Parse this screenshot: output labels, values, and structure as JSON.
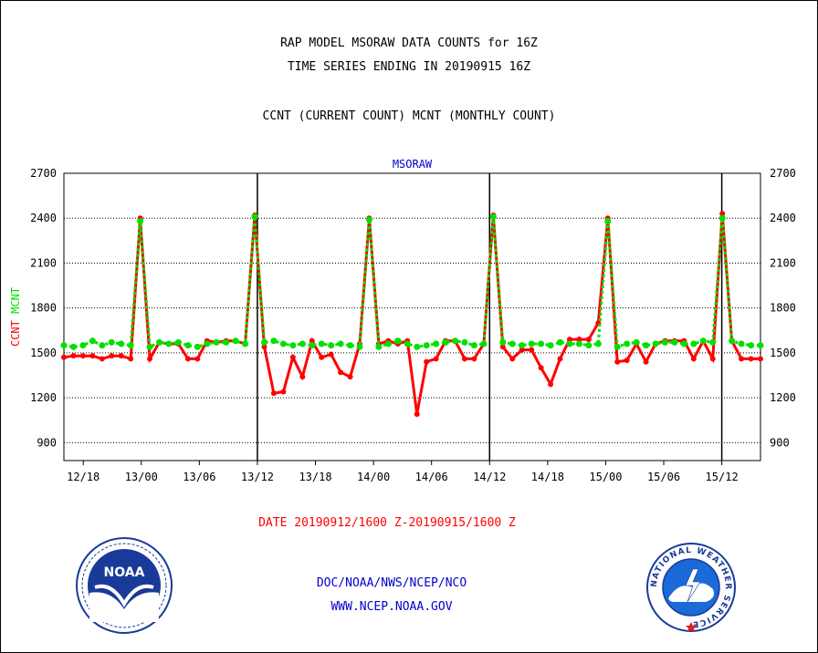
{
  "header": {
    "title_line1": "RAP MODEL MSORAW DATA COUNTS for 16Z",
    "title_line2": "TIME SERIES ENDING IN 20190915 16Z",
    "subtitle": "CCNT (CURRENT COUNT) MCNT (MONTHLY COUNT)"
  },
  "footer": {
    "date_range": "DATE 20190912/1600 Z-20190915/1600 Z",
    "org": "DOC/NOAA/NWS/NCEP/NCO",
    "url": "WWW.NCEP.NOAA.GOV"
  },
  "logos": {
    "noaa_text": "NOAA",
    "nws_ring_text": "NATIONAL WEATHER SERVICE"
  },
  "colors": {
    "ccnt": "#ff0000",
    "mcnt": "#00e000",
    "footer_blue": "#0000cc",
    "date_red": "#ff0000"
  },
  "chart_data": {
    "type": "line",
    "title": "MSORAW",
    "ylabel_parts": [
      {
        "text": "CCNT",
        "color": "#ff0000"
      },
      {
        "text": "MCNT",
        "color": "#00e000"
      }
    ],
    "ylim": [
      780,
      2700
    ],
    "yticks": [
      900,
      1200,
      1500,
      1800,
      2100,
      2400,
      2700
    ],
    "xlim": [
      0,
      72
    ],
    "xticks": [
      {
        "label": "12/18",
        "x": 2
      },
      {
        "label": "13/00",
        "x": 8
      },
      {
        "label": "13/06",
        "x": 14
      },
      {
        "label": "13/12",
        "x": 20
      },
      {
        "label": "13/18",
        "x": 26
      },
      {
        "label": "14/00",
        "x": 32
      },
      {
        "label": "14/06",
        "x": 38
      },
      {
        "label": "14/12",
        "x": 44
      },
      {
        "label": "14/18",
        "x": 50
      },
      {
        "label": "15/00",
        "x": 56
      },
      {
        "label": "15/06",
        "x": 62
      },
      {
        "label": "15/12",
        "x": 68
      }
    ],
    "vlines_x": [
      20,
      44,
      68
    ],
    "grid": "horizontal dotted",
    "series": [
      {
        "name": "CCNT",
        "color": "#ff0000",
        "style": "solid",
        "values": [
          1470,
          1480,
          1480,
          1480,
          1460,
          1480,
          1480,
          1460,
          2400,
          1460,
          1570,
          1560,
          1560,
          1460,
          1460,
          1580,
          1570,
          1580,
          1580,
          1560,
          2420,
          1540,
          1230,
          1240,
          1470,
          1340,
          1580,
          1470,
          1490,
          1370,
          1340,
          1560,
          2400,
          1560,
          1580,
          1560,
          1580,
          1090,
          1440,
          1460,
          1580,
          1580,
          1460,
          1460,
          1560,
          2420,
          1540,
          1460,
          1520,
          1520,
          1400,
          1290,
          1460,
          1590,
          1590,
          1590,
          1700,
          2400,
          1440,
          1450,
          1560,
          1440,
          1560,
          1580,
          1580,
          1580,
          1460,
          1580,
          1460,
          2430,
          1580,
          1460,
          1460,
          1460
        ]
      },
      {
        "name": "MCNT",
        "color": "#00e000",
        "style": "dotted",
        "values": [
          1550,
          1540,
          1550,
          1580,
          1550,
          1570,
          1560,
          1550,
          2380,
          1540,
          1570,
          1560,
          1570,
          1550,
          1540,
          1560,
          1570,
          1570,
          1580,
          1560,
          2410,
          1570,
          1580,
          1560,
          1550,
          1560,
          1550,
          1560,
          1550,
          1560,
          1550,
          1540,
          2390,
          1540,
          1560,
          1580,
          1560,
          1540,
          1550,
          1560,
          1570,
          1580,
          1570,
          1550,
          1560,
          2410,
          1570,
          1560,
          1550,
          1560,
          1560,
          1550,
          1570,
          1560,
          1560,
          1550,
          1560,
          2380,
          1540,
          1560,
          1570,
          1550,
          1560,
          1570,
          1570,
          1560,
          1560,
          1580,
          1570,
          2400,
          1580,
          1560,
          1550,
          1550
        ]
      }
    ]
  }
}
